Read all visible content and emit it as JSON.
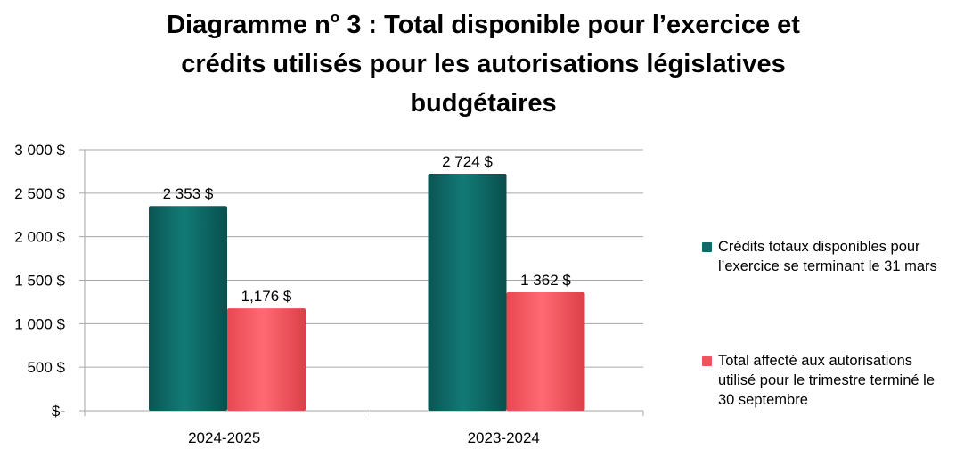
{
  "title": {
    "before_sup": "Diagramme n",
    "sup": "o",
    "after_sup_line1": " 3 : Total disponible pour l’exercice et",
    "line2": "crédits utilisés pour les autorisations législatives",
    "line3": "budgétaires"
  },
  "colors": {
    "series_credits": "#0e6b68",
    "series_affecte": "#f0535c",
    "axis": "#a6a6a6",
    "grid": "#a6a6a6"
  },
  "chart_data": {
    "type": "bar",
    "title": "Diagramme nº 3 : Total disponible pour l’exercice et crédits utilisés pour les autorisations législatives budgétaires",
    "categories": [
      "2024-2025",
      "2023-2024"
    ],
    "series": [
      {
        "name": "Crédits totaux disponibles pour l’exercice se terminant le 31 mars",
        "values": [
          2353,
          2724
        ],
        "labels": [
          "2 353 $",
          "2 724 $"
        ]
      },
      {
        "name": "Total affecté aux autorisations utilisé pour le trimestre terminé le 30 septembre",
        "values": [
          1176,
          1362
        ],
        "labels": [
          "1,176 $",
          "1 362 $"
        ]
      }
    ],
    "ylim": [
      0,
      3000
    ],
    "yticks": [
      0,
      500,
      1000,
      1500,
      2000,
      2500,
      3000
    ],
    "ytick_labels": [
      "$-",
      "500 $",
      "1 000 $",
      "1 500 $",
      "2 000 $",
      "2 500 $",
      "3 000 $"
    ],
    "xlabel": "",
    "ylabel": "",
    "grid": true,
    "legend_position": "right"
  }
}
